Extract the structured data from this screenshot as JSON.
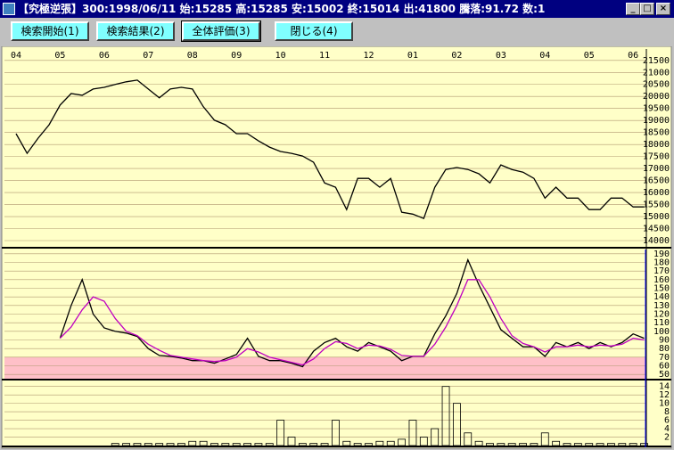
{
  "window": {
    "title": "【究極逆張】300:1998/06/11 始:15285 高:15285 安:15002 終:15014 出:41800 騰落:91.72 数:1"
  },
  "buttons": [
    "検索開始(1)",
    "検索結果(2)",
    "全体評価(3)",
    "閉じる(4)"
  ],
  "chart_data": [
    {
      "type": "line",
      "categories": [
        "04",
        null,
        null,
        null,
        "05",
        null,
        null,
        null,
        "06",
        null,
        null,
        null,
        "07",
        null,
        null,
        null,
        "08",
        null,
        null,
        null,
        "09",
        null,
        null,
        null,
        "10",
        null,
        null,
        null,
        "11",
        null,
        null,
        null,
        "12",
        null,
        null,
        null,
        "01",
        null,
        null,
        null,
        "02",
        null,
        null,
        null,
        "03",
        null,
        null,
        null,
        "04",
        null,
        null,
        null,
        "05",
        null,
        null,
        null,
        "06",
        null
      ],
      "series": [
        {
          "color": "#000000",
          "values": [
            18450,
            17630,
            18260,
            18820,
            19640,
            20120,
            20050,
            20310,
            20380,
            20500,
            20610,
            20680,
            20310,
            19940,
            20310,
            20380,
            20310,
            19570,
            19010,
            18820,
            18450,
            18450,
            18150,
            17890,
            17710,
            17630,
            17520,
            17260,
            16400,
            16220,
            15290,
            16590,
            16590,
            16220,
            16590,
            15180,
            15100,
            14920,
            16220,
            16960,
            17040,
            16960,
            16780,
            16400,
            17150,
            16960,
            16850,
            16590,
            15770,
            16220,
            15770,
            15770,
            15290,
            15290,
            15770,
            15770,
            15400,
            15400
          ]
        }
      ],
      "ylim": [
        13740,
        21900
      ],
      "yticks": [
        14000,
        14500,
        15000,
        15500,
        16000,
        16500,
        17000,
        17500,
        18000,
        18500,
        19000,
        19500,
        20000,
        20500,
        21000,
        21500
      ],
      "grid": true
    },
    {
      "type": "line",
      "series": [
        {
          "color": "#000000",
          "values": [
            null,
            null,
            null,
            null,
            92,
            130,
            160,
            120,
            104,
            100,
            98,
            94,
            80,
            72,
            71,
            69,
            66,
            66,
            63,
            68,
            73,
            92,
            71,
            66,
            66,
            63,
            59,
            77,
            87,
            92,
            82,
            77,
            87,
            82,
            77,
            66,
            71,
            71,
            97,
            118,
            144,
            183,
            154,
            128,
            102,
            92,
            82,
            82,
            71,
            87,
            82,
            87,
            80,
            87,
            82,
            87,
            97,
            92
          ]
        },
        {
          "color": "#c000c0",
          "values": [
            null,
            null,
            null,
            null,
            92,
            105,
            125,
            140,
            135,
            115,
            100,
            95,
            85,
            78,
            72,
            70,
            68,
            66,
            65,
            66,
            70,
            80,
            76,
            70,
            67,
            64,
            61,
            68,
            80,
            88,
            86,
            80,
            84,
            83,
            79,
            72,
            71,
            71,
            85,
            105,
            130,
            160,
            160,
            140,
            115,
            95,
            86,
            82,
            76,
            82,
            82,
            84,
            82,
            84,
            83,
            85,
            92,
            90
          ]
        }
      ],
      "shade_below": 70,
      "shade_color": "#ffc0c8",
      "ylim": [
        45,
        195
      ],
      "yticks": [
        50,
        60,
        70,
        80,
        90,
        100,
        110,
        120,
        130,
        140,
        150,
        160,
        170,
        180,
        190
      ],
      "grid": true
    },
    {
      "type": "bar",
      "color": "#000000",
      "values": [
        0,
        0,
        0,
        0,
        0,
        0,
        0,
        0,
        0,
        0.5,
        0.5,
        0.5,
        0.5,
        0.5,
        0.5,
        0.5,
        1,
        1,
        0.5,
        0.5,
        0.5,
        0.5,
        0.5,
        0.5,
        6,
        2,
        0.5,
        0.5,
        0.5,
        6,
        1,
        0.5,
        0.5,
        1,
        1,
        1.5,
        6,
        2,
        4,
        14,
        10,
        3,
        1,
        0.5,
        0.5,
        0.5,
        0.5,
        0.5,
        3,
        1,
        0.5,
        0.5,
        0.5,
        0.5,
        0.5,
        0.5,
        0.5,
        0.5
      ],
      "ylim": [
        0,
        15.2
      ],
      "yticks": [
        2,
        4,
        6,
        8,
        10,
        12,
        14
      ],
      "grid": true
    }
  ]
}
